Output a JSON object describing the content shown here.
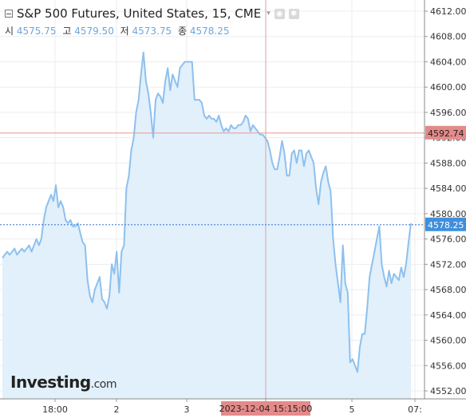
{
  "header": {
    "title": "S&P 500 Futures, United States, 15, CME",
    "ohlc": [
      {
        "label": "시",
        "value": "4575.75"
      },
      {
        "label": "고",
        "value": "4579.50"
      },
      {
        "label": "저",
        "value": "4573.75"
      },
      {
        "label": "종",
        "value": "4578.25"
      }
    ]
  },
  "logo": {
    "main": "Investing",
    "suffix": ".com"
  },
  "chart_data": {
    "type": "area",
    "title": "S&P 500 Futures, United States, 15, CME",
    "ylim": [
      4550,
      4614
    ],
    "y_ticks": [
      "4612.00",
      "4608.00",
      "4604.00",
      "4600.00",
      "4596.00",
      "4592.00",
      "4588.00",
      "4584.00",
      "4580.00",
      "4576.00",
      "4572.00",
      "4568.00",
      "4564.00",
      "4560.00",
      "4556.00",
      "4552.00"
    ],
    "x_ticks": [
      "18:00",
      "2",
      "3",
      "4",
      "5",
      "07:"
    ],
    "series": [
      {
        "values": [
          4573,
          4573.5,
          4574,
          4573.5,
          4574,
          4574.5,
          4573.5,
          4574,
          4574.5,
          4574,
          4574.5,
          4575,
          4574,
          4575,
          4576,
          4575,
          4576,
          4579,
          4581,
          4582,
          4583,
          4582,
          4584.5,
          4581,
          4582,
          4581,
          4579,
          4578.5,
          4579,
          4578,
          4578,
          4578.5,
          4577,
          4575.5,
          4575,
          4569.5,
          4567,
          4566,
          4568,
          4569,
          4570,
          4566.5,
          4566,
          4565,
          4567,
          4572,
          4570.5,
          4574,
          4567.5,
          4574,
          4575,
          4584,
          4586,
          4590,
          4592,
          4596,
          4598,
          4602,
          4605.5,
          4601,
          4599,
          4596,
          4592,
          4598,
          4599,
          4598.5,
          4597.5,
          4601,
          4603,
          4599.5,
          4602,
          4601,
          4600,
          4603,
          4603.5,
          4604,
          4604,
          4604,
          4604,
          4598,
          4598,
          4598,
          4597.5,
          4595.5,
          4595,
          4595.5,
          4595,
          4595,
          4594.5,
          4595.5,
          4594,
          4593,
          4593.5,
          4593,
          4594,
          4593.5,
          4593.5,
          4594,
          4594,
          4594.5,
          4595.5,
          4595,
          4593,
          4594,
          4593.5,
          4593,
          4592.5,
          4592.5,
          4592,
          4591.5,
          4590,
          4588,
          4587,
          4587,
          4589,
          4591.5,
          4589.5,
          4586,
          4586,
          4589.5,
          4590,
          4588,
          4590,
          4590,
          4587.5,
          4589.5,
          4590,
          4589,
          4588,
          4584,
          4581.5,
          4585,
          4586.5,
          4587.5,
          4585,
          4583.5,
          4576,
          4572,
          4569,
          4566,
          4575,
          4569,
          4567.5,
          4556.5,
          4557,
          4556,
          4555,
          4559,
          4561,
          4561,
          4565,
          4570,
          4572,
          4574,
          4576,
          4578,
          4572,
          4570,
          4568.5,
          4571,
          4569,
          4570.5,
          4570,
          4569.5,
          4571.5,
          4570,
          4572,
          4575.5,
          4578.5
        ],
        "last": "4578.25"
      }
    ],
    "crosshair": {
      "price": "4592.74",
      "time": "2023-12-04 15:15:00"
    },
    "grid": true,
    "colors": {
      "line": "#8ec0ee",
      "fill": "#e1f0fb",
      "last_price_bg": "#3f8fdc",
      "crosshair_price_bg": "#e48a8a",
      "crosshair_time_bg": "#e48a8a",
      "last_price_line": "#3b6fd6"
    }
  }
}
